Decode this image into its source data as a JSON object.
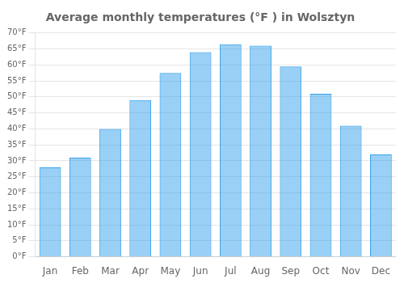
{
  "chart_data": {
    "type": "bar",
    "title": "Average monthly temperatures (°F ) in Wolsztyn",
    "categories": [
      "Jan",
      "Feb",
      "Mar",
      "Apr",
      "May",
      "Jun",
      "Jul",
      "Aug",
      "Sep",
      "Oct",
      "Nov",
      "Dec"
    ],
    "values": [
      28,
      31,
      40,
      49,
      57.5,
      64,
      66.5,
      66,
      59.5,
      51,
      41,
      32
    ],
    "ylim": [
      0,
      70
    ],
    "yticks": [
      {
        "value": 0,
        "label": "0°F"
      },
      {
        "value": 5,
        "label": "5°F"
      },
      {
        "value": 10,
        "label": "10°F"
      },
      {
        "value": 15,
        "label": "15°F"
      },
      {
        "value": 20,
        "label": "20°F"
      },
      {
        "value": 25,
        "label": "25°F"
      },
      {
        "value": 30,
        "label": "30°F"
      },
      {
        "value": 35,
        "label": "35°F"
      },
      {
        "value": 40,
        "label": "40°F"
      },
      {
        "value": 45,
        "label": "45°F"
      },
      {
        "value": 50,
        "label": "50°F"
      },
      {
        "value": 55,
        "label": "55°F"
      },
      {
        "value": 60,
        "label": "60°F"
      },
      {
        "value": 65,
        "label": "65°F"
      },
      {
        "value": 70,
        "label": "70°F"
      }
    ],
    "grid": true
  }
}
